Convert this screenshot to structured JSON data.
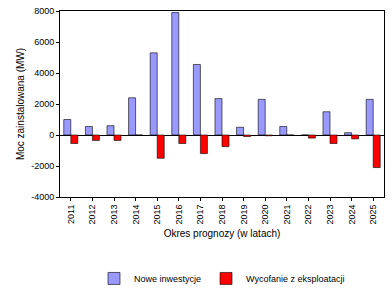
{
  "chart_data": {
    "type": "bar",
    "x_label": "Okres prognozy (w latach)",
    "y_label": "Moc zainstalowana (MW)",
    "categories": [
      "2011",
      "2012",
      "2013",
      "2014",
      "2015",
      "2016",
      "2017",
      "2018",
      "2019",
      "2020",
      "2021",
      "2022",
      "2023",
      "2024",
      "2025"
    ],
    "series": [
      {
        "name": "Nowe inwestycje",
        "color": "#9999ff",
        "values": [
          1000,
          550,
          600,
          2400,
          5300,
          7900,
          4550,
          2350,
          500,
          2300,
          550,
          0,
          1500,
          150,
          2300
        ]
      },
      {
        "name": "Wycofanie z eksploatacji",
        "color": "#ff0000",
        "values": [
          -550,
          -350,
          -350,
          0,
          -1500,
          -550,
          -1200,
          -750,
          -100,
          -50,
          0,
          -200,
          -550,
          -250,
          -2100
        ]
      }
    ],
    "ylim": [
      -4000,
      8000
    ],
    "yticks": [
      -4000,
      -2000,
      0,
      2000,
      4000,
      6000,
      8000
    ],
    "grid": false,
    "legend": "bottom"
  }
}
